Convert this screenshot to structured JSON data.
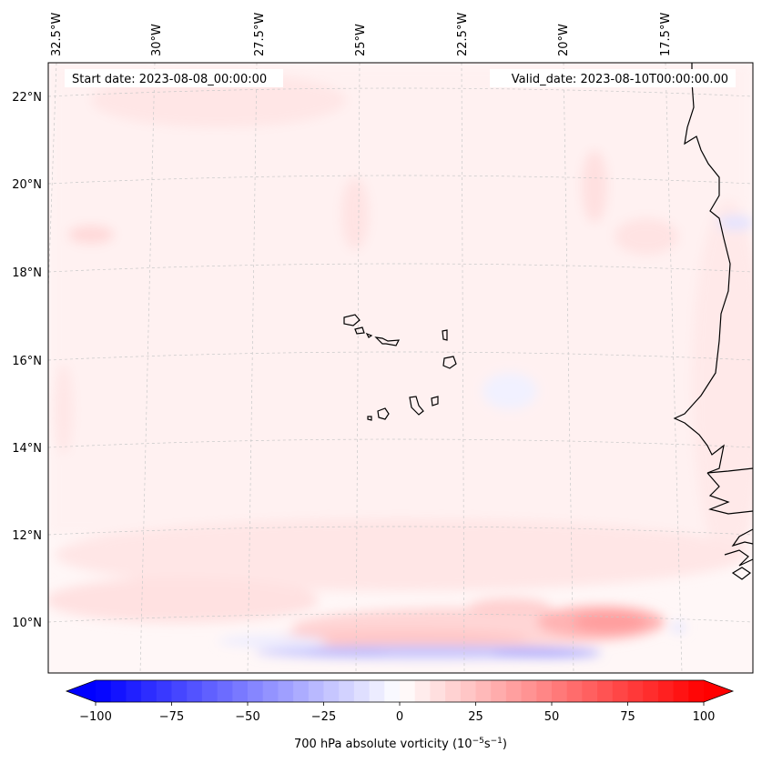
{
  "map": {
    "start_date": "Start date: 2023-08-08_00:00:00",
    "valid_date": "Valid_date: 2023-08-10T00:00:00.00",
    "lon_labels": [
      "32.5°W",
      "30°W",
      "27.5°W",
      "25°W",
      "22.5°W",
      "20°W",
      "17.5°W"
    ],
    "lat_labels": [
      "22°N",
      "20°N",
      "18°N",
      "16°N",
      "14°N",
      "12°N",
      "10°N"
    ],
    "coastline_color": "#000000",
    "gridline_color": "#c8c8c8"
  },
  "colorbar": {
    "ticks": [
      "−100",
      "−75",
      "−50",
      "−25",
      "0",
      "25",
      "50",
      "75",
      "100"
    ],
    "tick_values": [
      -100,
      -75,
      -50,
      -25,
      0,
      25,
      50,
      75,
      100
    ],
    "label_main": "700 hPa absolute vorticity (10",
    "label_exp1": "−5",
    "label_mid": "s",
    "label_exp2": "−1",
    "label_end": ")",
    "min": -100,
    "max": 100,
    "levels": 40,
    "colormap": "bwr",
    "color_min": "#0000ff",
    "color_mid": "#ffffff",
    "color_max": "#ff0000"
  }
}
